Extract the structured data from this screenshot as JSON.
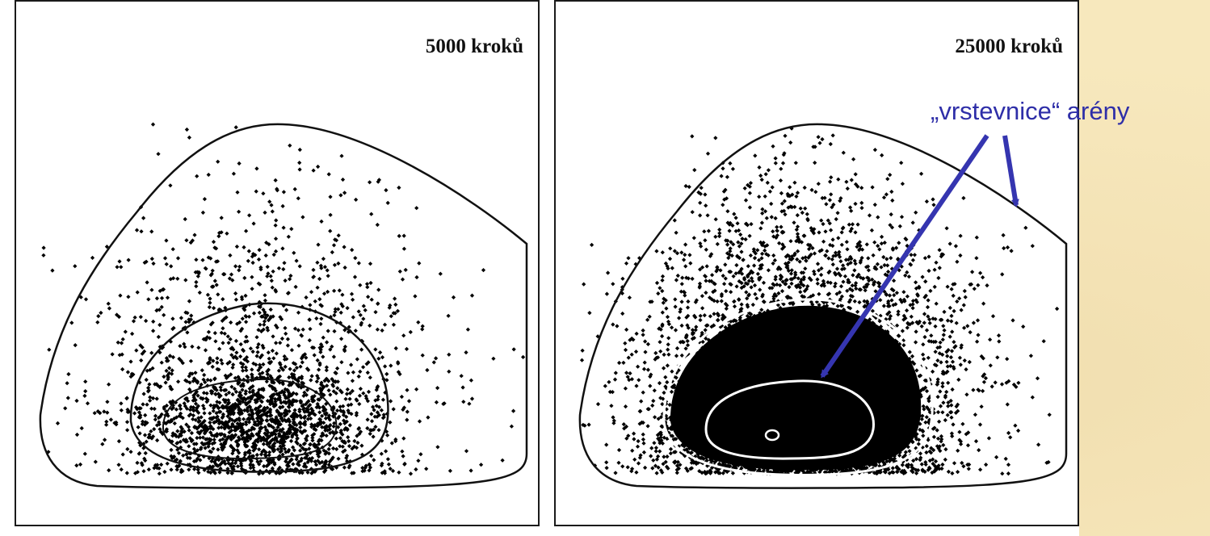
{
  "figure": {
    "panels": [
      {
        "id": "left",
        "title": "5000 kroků",
        "steps": 5000
      },
      {
        "id": "right",
        "title": "25000 kroků",
        "steps": 25000
      }
    ],
    "annotation": {
      "text": "„vrstevnice“ arény",
      "arrow_color": "#3535b0"
    },
    "colors": {
      "points": "#000000",
      "contours_left": "#000000",
      "contours_right_inner": "#ffffff",
      "background": "#f7e8bd"
    }
  }
}
